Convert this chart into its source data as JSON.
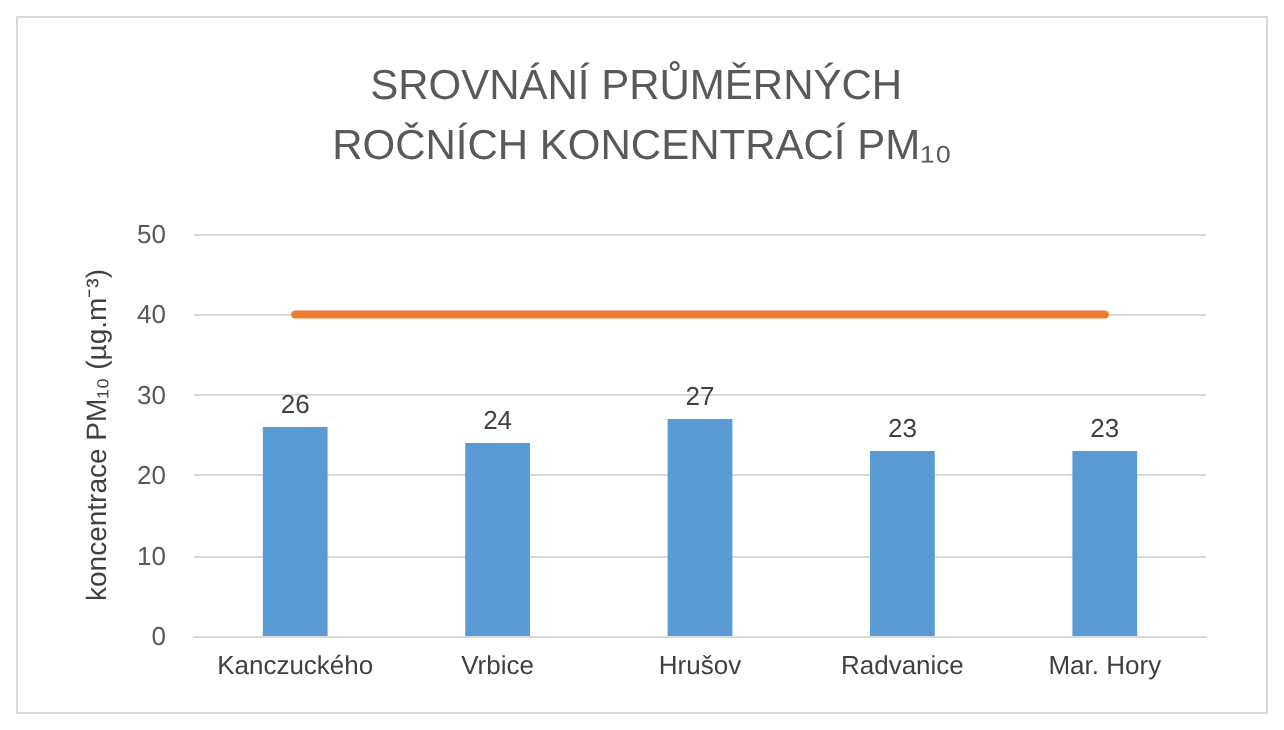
{
  "chart_data": {
    "type": "bar",
    "title": "SROVNÁNÍ PRŮMĚRNÝCH ROČNÍCH KONCENTRACÍ PM₁₀",
    "ylabel": "koncentrace PM₁₀ (µg.m⁻³)",
    "categories": [
      "Kanczuckého",
      "Vrbice",
      "Hrušov",
      "Radvanice",
      "Mar. Hory"
    ],
    "series": [
      {
        "color": "#5b9bd5",
        "values": [
          26,
          24,
          27,
          23,
          23
        ],
        "value_labels": [
          "26",
          "24",
          "27",
          "23",
          "23"
        ]
      },
      {
        "type": "line",
        "color": "#ed7d31",
        "values": [
          40,
          40,
          40,
          40,
          40
        ],
        "marker": "none"
      }
    ],
    "ylim": [
      0,
      50
    ],
    "yticks": [
      0,
      10,
      20,
      30,
      40,
      50
    ],
    "grid": "y"
  }
}
